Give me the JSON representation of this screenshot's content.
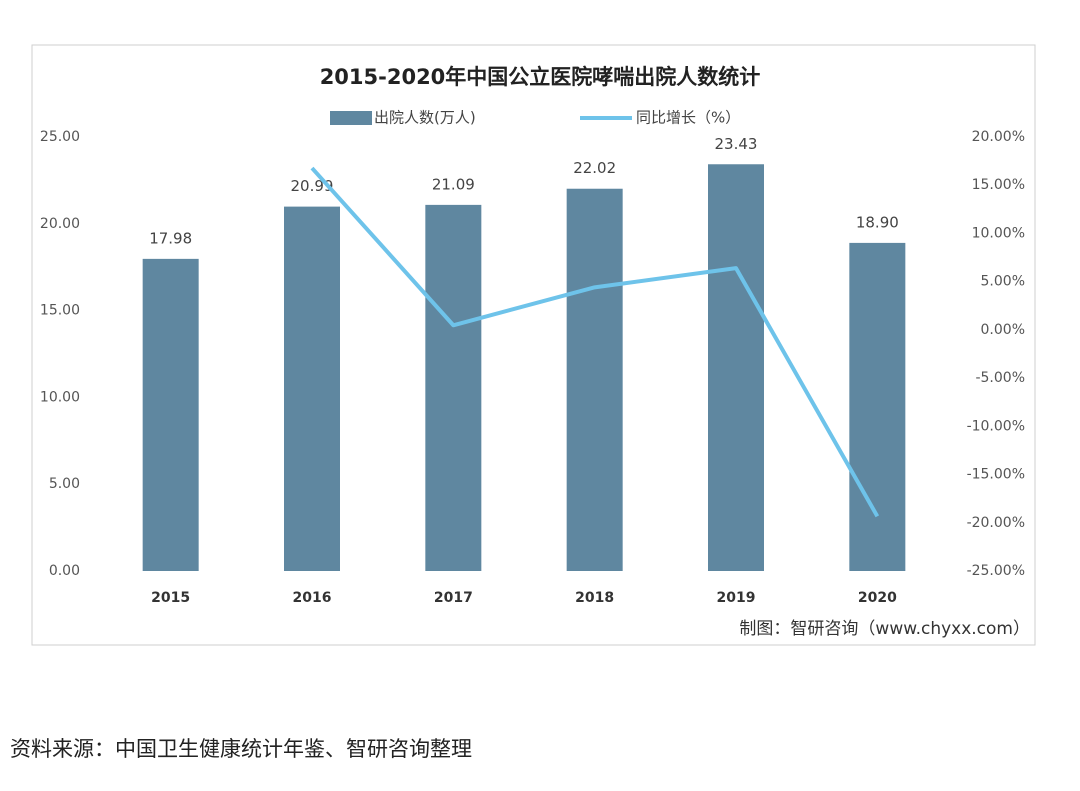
{
  "chart_data": {
    "type": "bar",
    "title": "2015-2020年中国公立医院哮喘出院人数统计",
    "categories": [
      "2015",
      "2016",
      "2017",
      "2018",
      "2019",
      "2020"
    ],
    "series": [
      {
        "name": "出院人数(万人)",
        "type": "bar",
        "color": "#5f87a0",
        "values": [
          17.98,
          20.99,
          21.09,
          22.02,
          23.43,
          18.9
        ],
        "value_labels": [
          "17.98",
          "20.99",
          "21.09",
          "22.02",
          "23.43",
          "18.90"
        ]
      },
      {
        "name": "同比增长（%）",
        "type": "line",
        "color": "#6ec3ea",
        "axis": "y2",
        "values": [
          null,
          16.78,
          0.48,
          4.41,
          6.4,
          -19.33
        ]
      }
    ],
    "ylim": [
      0,
      25
    ],
    "yticks": [
      {
        "value": 0,
        "label": "0.00"
      },
      {
        "value": 5,
        "label": "5.00"
      },
      {
        "value": 10,
        "label": "10.00"
      },
      {
        "value": 15,
        "label": "15.00"
      },
      {
        "value": 20,
        "label": "20.00"
      },
      {
        "value": 25,
        "label": "25.00"
      }
    ],
    "y2lim": [
      -25,
      20
    ],
    "y2ticks": [
      {
        "value": -25,
        "label": "-25.00%"
      },
      {
        "value": -20,
        "label": "-20.00%"
      },
      {
        "value": -15,
        "label": "-15.00%"
      },
      {
        "value": -10,
        "label": "-10.00%"
      },
      {
        "value": -5,
        "label": "-5.00%"
      },
      {
        "value": 0,
        "label": "0.00%"
      },
      {
        "value": 5,
        "label": "5.00%"
      },
      {
        "value": 10,
        "label": "10.00%"
      },
      {
        "value": 15,
        "label": "15.00%"
      },
      {
        "value": 20,
        "label": "20.00%"
      }
    ],
    "grid": false,
    "annotation": "制图：智研咨询（www.chyxx.com）",
    "source": "资料来源：中国卫生健康统计年鉴、智研咨询整理"
  }
}
